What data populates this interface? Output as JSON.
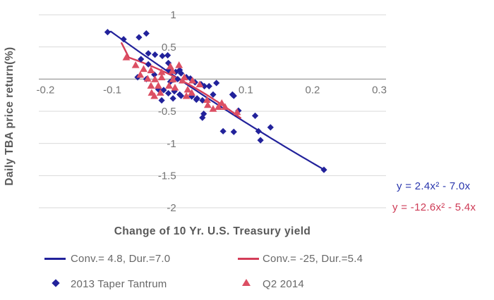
{
  "colors": {
    "navy": "#22229b",
    "red_line": "#d43d58",
    "red_marker": "#dc4f63",
    "equation_blue": "#2936ad",
    "equation_red": "#ce3a55",
    "gridline": "#d9d9d9",
    "axis_line": "#a8a8a8",
    "tick_text": "#757575",
    "axis_title_text": "#595959",
    "legend_text": "#686868"
  },
  "equations": {
    "blue": "y = 2.4x² - 7.0x",
    "red": "y = -12.6x² - 5.4x"
  },
  "legend": {
    "blue_line": "Conv.= 4.8, Dur.=7.0",
    "red_line": "Conv.= -25, Dur.=5.4",
    "blue_series": "2013 Taper Tantrum",
    "red_series": "Q2 2014"
  },
  "chart_data": {
    "type": "scatter",
    "title": "",
    "xlabel": "Change of 10 Yr. U.S. Treasury yield",
    "ylabel": "Daily TBA price return(%)",
    "xlim": [
      -0.21,
      0.31
    ],
    "ylim": [
      -2,
      1
    ],
    "grid": "horizontal-only",
    "legend_position": "bottom",
    "xticks": [
      {
        "value": -0.2,
        "label": "-0.2"
      },
      {
        "value": -0.1,
        "label": "-0.1"
      },
      {
        "value": 0.1,
        "label": "0.1"
      },
      {
        "value": 0.2,
        "label": "0.2"
      },
      {
        "value": 0.3,
        "label": "0.3"
      }
    ],
    "yticks": [
      {
        "value": 1,
        "label": "1"
      },
      {
        "value": 0.5,
        "label": "0.5"
      },
      {
        "value": 0,
        "label": "0"
      },
      {
        "value": -0.5,
        "label": "-0.5"
      },
      {
        "value": -1,
        "label": "-1"
      },
      {
        "value": -1.5,
        "label": "-1.5"
      },
      {
        "value": -2,
        "label": "-2"
      }
    ],
    "series": [
      {
        "name": "2013 Taper Tantrum",
        "marker": "diamond",
        "color_key": "navy",
        "points": [
          [
            -0.107,
            0.73
          ],
          [
            -0.083,
            0.62
          ],
          [
            -0.06,
            0.65
          ],
          [
            -0.049,
            0.71
          ],
          [
            -0.057,
            0.31
          ],
          [
            -0.046,
            0.4
          ],
          [
            -0.036,
            0.38
          ],
          [
            -0.025,
            0.36
          ],
          [
            -0.017,
            0.37
          ],
          [
            -0.046,
            0.23
          ],
          [
            -0.062,
            0.03
          ],
          [
            -0.049,
            0.0
          ],
          [
            -0.037,
            0.07
          ],
          [
            -0.016,
            0.25
          ],
          [
            -0.016,
            0.14
          ],
          [
            -0.005,
            0.11
          ],
          [
            0.001,
            0.14
          ],
          [
            0.003,
            0.09
          ],
          [
            -0.013,
            -0.04
          ],
          [
            -0.002,
            0.0
          ],
          [
            0.011,
            0.03
          ],
          [
            0.017,
            0.01
          ],
          [
            -0.031,
            -0.16
          ],
          [
            -0.023,
            -0.17
          ],
          [
            -0.016,
            -0.22
          ],
          [
            -0.007,
            -0.19
          ],
          [
            -0.026,
            -0.33
          ],
          [
            -0.009,
            -0.3
          ],
          [
            0.001,
            -0.24
          ],
          [
            0.003,
            -0.26
          ],
          [
            0.024,
            -0.05
          ],
          [
            0.033,
            -0.08
          ],
          [
            0.038,
            -0.11
          ],
          [
            0.045,
            -0.11
          ],
          [
            0.056,
            -0.06
          ],
          [
            0.019,
            -0.27
          ],
          [
            0.027,
            -0.3
          ],
          [
            0.026,
            -0.32
          ],
          [
            0.035,
            -0.33
          ],
          [
            0.051,
            -0.24
          ],
          [
            0.08,
            -0.24
          ],
          [
            0.082,
            -0.26
          ],
          [
            0.037,
            -0.54
          ],
          [
            0.035,
            -0.6
          ],
          [
            0.089,
            -0.49
          ],
          [
            0.114,
            -0.57
          ],
          [
            0.066,
            -0.81
          ],
          [
            0.082,
            -0.82
          ],
          [
            0.119,
            -0.81
          ],
          [
            0.137,
            -0.75
          ],
          [
            0.122,
            -0.95
          ],
          [
            0.217,
            -1.41
          ]
        ]
      },
      {
        "name": "Q2 2014",
        "marker": "triangle",
        "color_key": "red_marker",
        "points": [
          [
            -0.079,
            0.34
          ],
          [
            -0.065,
            0.22
          ],
          [
            -0.053,
            0.16
          ],
          [
            -0.042,
            0.14
          ],
          [
            -0.058,
            0.07
          ],
          [
            -0.047,
            0.01
          ],
          [
            -0.036,
            0.0
          ],
          [
            -0.026,
            0.11
          ],
          [
            -0.026,
            0.03
          ],
          [
            -0.013,
            0.2
          ],
          [
            0.0,
            0.22
          ],
          [
            -0.01,
            0.13
          ],
          [
            -0.042,
            -0.1
          ],
          [
            -0.031,
            -0.1
          ],
          [
            -0.015,
            -0.1
          ],
          [
            -0.009,
            0.0
          ],
          [
            0.005,
            -0.02
          ],
          [
            0.008,
            0.03
          ],
          [
            0.02,
            -0.02
          ],
          [
            0.031,
            -0.08
          ],
          [
            -0.041,
            -0.21
          ],
          [
            -0.028,
            -0.21
          ],
          [
            -0.037,
            -0.26
          ],
          [
            -0.006,
            -0.13
          ],
          [
            0.013,
            -0.16
          ],
          [
            0.011,
            -0.26
          ],
          [
            0.019,
            -0.21
          ],
          [
            0.042,
            -0.32
          ],
          [
            0.043,
            -0.4
          ],
          [
            0.051,
            -0.46
          ],
          [
            0.059,
            -0.43
          ],
          [
            0.064,
            -0.37
          ],
          [
            0.069,
            -0.43
          ],
          [
            0.087,
            -0.51
          ]
        ]
      }
    ],
    "trendlines": [
      {
        "label": "Conv.= 4.8, Dur.=7.0",
        "equation": "y = 2.4x² - 7.0x",
        "a": 2.4,
        "b": -7.0,
        "x_range": [
          -0.102,
          0.218
        ],
        "lead_point": [
          -0.107,
          0.73
        ],
        "color_key": "navy",
        "width": 2.2
      },
      {
        "label": "Conv.= -25, Dur.=5.4",
        "equation": "y = -12.6x² - 5.4x",
        "a": -12.6,
        "b": -5.4,
        "x_range": [
          -0.075,
          0.092
        ],
        "lead_point": [
          -0.086,
          0.56
        ],
        "color_key": "red_line",
        "width": 2.4
      }
    ]
  }
}
